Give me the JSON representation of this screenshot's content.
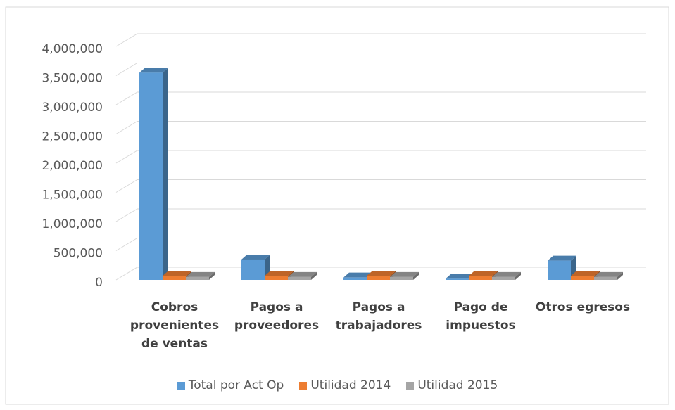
{
  "chart_data": {
    "type": "bar3d",
    "categories": [
      "Cobros provenientes de ventas",
      "Pagos a proveedores",
      "Pagos a trabajadores",
      "Pago de impuestos",
      "Otros egresos"
    ],
    "series": [
      {
        "name": "Total por Act Op",
        "color": "#5b9bd5",
        "values": [
          3550000,
          350000,
          40000,
          20000,
          330000
        ]
      },
      {
        "name": "Utilidad 2014",
        "color": "#ed7d31",
        "values": [
          70000,
          70000,
          70000,
          70000,
          70000
        ]
      },
      {
        "name": "Utilidad 2015",
        "color": "#a5a5a5",
        "values": [
          50000,
          50000,
          50000,
          50000,
          50000
        ]
      }
    ],
    "ylim": [
      0,
      4000000
    ],
    "yticks": [
      0,
      {
        "value": 500000,
        "label": "500,000"
      },
      {
        "value": 1000000,
        "label": "1,000,000"
      },
      {
        "value": 1500000,
        "label": "1,500,000"
      },
      {
        "value": 2000000,
        "label": "2,000,000"
      },
      {
        "value": 2500000,
        "label": "2,500,000"
      },
      {
        "value": 3000000,
        "label": "3,000,000"
      },
      {
        "value": 3500000,
        "label": "3,500,000"
      },
      {
        "value": 4000000,
        "label": "4,000,000"
      }
    ],
    "grid": true,
    "legend": "bottom"
  }
}
